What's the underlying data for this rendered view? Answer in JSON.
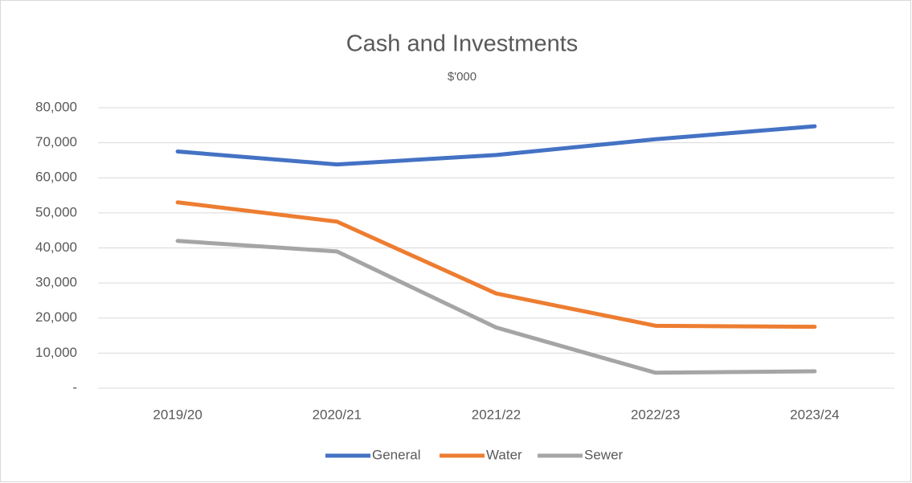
{
  "chart_data": {
    "type": "line",
    "title": "Cash and Investments",
    "subtitle": "$'000",
    "categories": [
      "2019/20",
      "2020/21",
      "2021/22",
      "2022/23",
      "2023/24"
    ],
    "series": [
      {
        "name": "General",
        "color": "#4472c4",
        "values": [
          67500,
          63800,
          66500,
          71000,
          74700
        ]
      },
      {
        "name": "Water",
        "color": "#ed7d31",
        "values": [
          53000,
          47500,
          27000,
          17800,
          17500
        ]
      },
      {
        "name": "Sewer",
        "color": "#a5a5a5",
        "values": [
          42000,
          39000,
          17300,
          4400,
          4800
        ]
      }
    ],
    "ylim": [
      0,
      80000
    ],
    "yticks": [
      {
        "value": 0,
        "label": "-"
      },
      {
        "value": 10000,
        "label": "10,000"
      },
      {
        "value": 20000,
        "label": "20,000"
      },
      {
        "value": 30000,
        "label": "30,000"
      },
      {
        "value": 40000,
        "label": "40,000"
      },
      {
        "value": 50000,
        "label": "50,000"
      },
      {
        "value": 60000,
        "label": "60,000"
      },
      {
        "value": 70000,
        "label": "70,000"
      },
      {
        "value": 80000,
        "label": "80,000"
      }
    ],
    "grid": true,
    "legend": "bottom"
  }
}
